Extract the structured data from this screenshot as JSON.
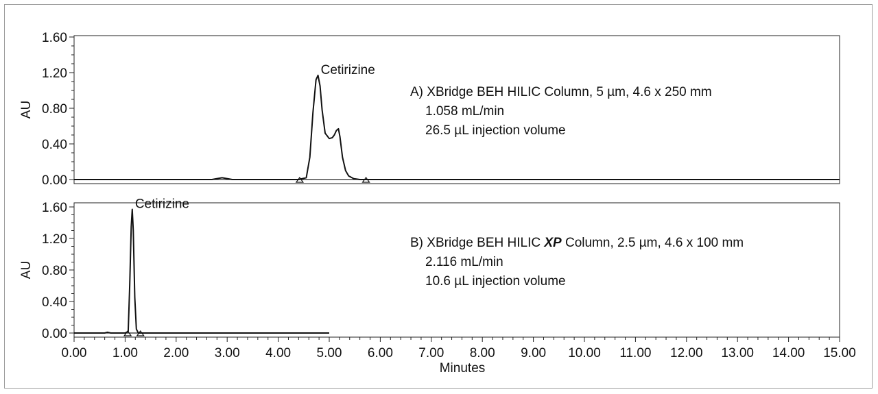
{
  "chart_data": [
    {
      "type": "line",
      "ylabel": "AU",
      "xlim": [
        0,
        15
      ],
      "ylim": [
        0,
        1.6
      ],
      "y_ticks": [
        "0.00",
        "0.40",
        "0.80",
        "1.20",
        "1.60"
      ],
      "peak_label": "Cetirizine",
      "peak_x": 4.78,
      "annotation_lines": [
        [
          "A)  XBridge BEH HILIC  Column, 5 µm, 4.6 x 250 mm"
        ],
        [
          "1.058 mL/min"
        ],
        [
          "26.5 µL injection volume"
        ]
      ],
      "series": [
        {
          "x": [
            0,
            2.7,
            2.9,
            3.1,
            4.4,
            4.55,
            4.62,
            4.68,
            4.74,
            4.78,
            4.82,
            4.86,
            4.92,
            5.0,
            5.06,
            5.1,
            5.14,
            5.18,
            5.21,
            5.26,
            5.32,
            5.38,
            5.48,
            5.6,
            5.75,
            6.2,
            6.5,
            15
          ],
          "y": [
            0.0,
            0.0,
            0.02,
            0.0,
            0.0,
            0.02,
            0.25,
            0.75,
            1.12,
            1.17,
            1.05,
            0.78,
            0.52,
            0.46,
            0.47,
            0.5,
            0.55,
            0.57,
            0.48,
            0.25,
            0.1,
            0.04,
            0.01,
            0.0,
            0.0,
            0.0,
            0.0,
            0.0
          ]
        }
      ],
      "baseline_markers_x": [
        4.42,
        5.72
      ]
    },
    {
      "type": "line",
      "ylabel": "AU",
      "xlabel": "Minutes",
      "xlim": [
        0,
        15
      ],
      "ylim": [
        0,
        1.6
      ],
      "y_ticks": [
        "0.00",
        "0.40",
        "0.80",
        "1.20",
        "1.60"
      ],
      "x_ticks": [
        "0.00",
        "1.00",
        "2.00",
        "3.00",
        "4.00",
        "5.00",
        "6.00",
        "7.00",
        "8.00",
        "9.00",
        "10.00",
        "11.00",
        "12.00",
        "13.00",
        "14.00",
        "15.00"
      ],
      "peak_label": "Cetirizine",
      "peak_x": 1.14,
      "annotation_lines": [
        [
          "B)  XBridge BEH HILIC ",
          {
            "em": "XP"
          },
          " Column, 2.5 µm, 4.6 x 100 mm"
        ],
        [
          "2.116 mL/min"
        ],
        [
          "10.6 µL injection volume"
        ]
      ],
      "series": [
        {
          "x": [
            0,
            0.6,
            0.65,
            0.72,
            1.0,
            1.06,
            1.09,
            1.12,
            1.14,
            1.16,
            1.19,
            1.22,
            1.26,
            1.35,
            5.0
          ],
          "y": [
            0.0,
            0.0,
            0.01,
            0.0,
            0.0,
            0.02,
            0.6,
            1.35,
            1.57,
            1.3,
            0.45,
            0.05,
            0.0,
            0.0,
            0.0
          ]
        }
      ],
      "baseline_markers_x": [
        1.05,
        1.3
      ]
    }
  ]
}
